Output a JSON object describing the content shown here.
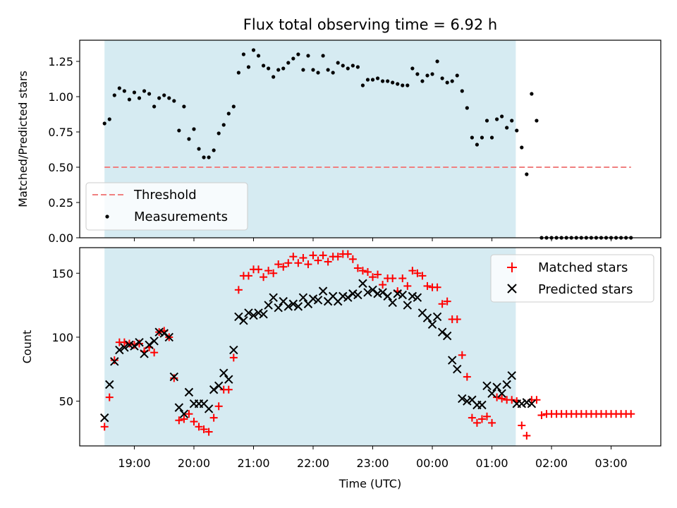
{
  "figure": {
    "title": "Flux total observing time = 6.92 h",
    "xlabel": "Time (UTC)"
  },
  "colors": {
    "shade": "#add8e6",
    "threshold": "#f08080",
    "measurements": "#000000",
    "matched": "#ff0000",
    "predicted": "#000000"
  },
  "chart_data": [
    {
      "type": "scatter",
      "ylabel": "Matched/Predicted stars",
      "ylim": [
        0,
        1.4
      ],
      "yticks": [
        "0.00",
        "0.25",
        "0.50",
        "0.75",
        "1.00",
        "1.25"
      ],
      "xlim": [
        "18:05",
        "03:50"
      ],
      "shaded_span": [
        "18:30",
        "01:24"
      ],
      "threshold": {
        "value": 0.5,
        "x": [
          "18:30",
          "03:20"
        ]
      },
      "legend": {
        "position": "lower-left",
        "entries": [
          "Threshold",
          "Measurements"
        ]
      },
      "series": [
        {
          "name": "Measurements",
          "x": [
            "18:30",
            "18:35",
            "18:40",
            "18:45",
            "18:50",
            "18:55",
            "19:00",
            "19:05",
            "19:10",
            "19:15",
            "19:20",
            "19:25",
            "19:30",
            "19:35",
            "19:40",
            "19:45",
            "19:50",
            "19:55",
            "20:00",
            "20:05",
            "20:10",
            "20:15",
            "20:20",
            "20:25",
            "20:30",
            "20:35",
            "20:40",
            "20:45",
            "20:50",
            "20:55",
            "21:00",
            "21:05",
            "21:10",
            "21:15",
            "21:20",
            "21:25",
            "21:30",
            "21:35",
            "21:40",
            "21:45",
            "21:50",
            "21:55",
            "22:00",
            "22:05",
            "22:10",
            "22:15",
            "22:20",
            "22:25",
            "22:30",
            "22:35",
            "22:40",
            "22:45",
            "22:50",
            "22:55",
            "23:00",
            "23:05",
            "23:10",
            "23:15",
            "23:20",
            "23:25",
            "23:30",
            "23:35",
            "23:40",
            "23:45",
            "23:50",
            "23:55",
            "00:00",
            "00:05",
            "00:10",
            "00:15",
            "00:20",
            "00:25",
            "00:30",
            "00:35",
            "00:40",
            "00:45",
            "00:50",
            "00:55",
            "01:00",
            "01:05",
            "01:10",
            "01:15",
            "01:20",
            "01:25",
            "01:30",
            "01:35",
            "01:40",
            "01:45",
            "01:50",
            "01:55",
            "02:00",
            "02:05",
            "02:10",
            "02:15",
            "02:20",
            "02:25",
            "02:30",
            "02:35",
            "02:40",
            "02:45",
            "02:50",
            "02:55",
            "03:00",
            "03:05",
            "03:10",
            "03:15",
            "03:20"
          ],
          "y": [
            0.81,
            0.84,
            1.01,
            1.06,
            1.04,
            0.98,
            1.03,
            0.99,
            1.04,
            1.02,
            0.93,
            0.99,
            1.01,
            0.99,
            0.97,
            0.76,
            0.93,
            0.7,
            0.77,
            0.63,
            0.57,
            0.57,
            0.62,
            0.74,
            0.8,
            0.88,
            0.93,
            1.17,
            1.3,
            1.21,
            1.33,
            1.29,
            1.22,
            1.2,
            1.14,
            1.19,
            1.2,
            1.24,
            1.27,
            1.3,
            1.19,
            1.29,
            1.19,
            1.17,
            1.29,
            1.19,
            1.17,
            1.24,
            1.22,
            1.2,
            1.22,
            1.21,
            1.08,
            1.12,
            1.12,
            1.13,
            1.11,
            1.11,
            1.1,
            1.09,
            1.08,
            1.08,
            1.2,
            1.16,
            1.11,
            1.15,
            1.16,
            1.25,
            1.13,
            1.1,
            1.11,
            1.15,
            1.04,
            0.92,
            0.71,
            0.66,
            0.71,
            0.83,
            0.71,
            0.84,
            0.86,
            0.78,
            0.83,
            0.76,
            0.64,
            0.45,
            1.02,
            0.83,
            0,
            0,
            0,
            0,
            0,
            0,
            0,
            0,
            0,
            0,
            0,
            0,
            0,
            0,
            0,
            0,
            0,
            0,
            0
          ]
        }
      ]
    },
    {
      "type": "scatter",
      "ylabel": "Count",
      "ylim": [
        15,
        170
      ],
      "yticks": [
        "50",
        "100",
        "150"
      ],
      "xlim": [
        "18:05",
        "03:50"
      ],
      "xticks": [
        "19:00",
        "20:00",
        "21:00",
        "22:00",
        "23:00",
        "00:00",
        "01:00",
        "02:00",
        "03:00"
      ],
      "shaded_span": [
        "18:30",
        "01:24"
      ],
      "legend": {
        "position": "upper-right",
        "entries": [
          "Matched stars",
          "Predicted stars"
        ]
      },
      "series": [
        {
          "name": "Matched stars",
          "marker": "plus",
          "x": [
            "18:30",
            "18:35",
            "18:40",
            "18:45",
            "18:50",
            "18:55",
            "19:00",
            "19:05",
            "19:10",
            "19:15",
            "19:20",
            "19:25",
            "19:30",
            "19:35",
            "19:40",
            "19:45",
            "19:50",
            "19:55",
            "20:00",
            "20:05",
            "20:10",
            "20:15",
            "20:20",
            "20:25",
            "20:30",
            "20:35",
            "20:40",
            "20:45",
            "20:50",
            "20:55",
            "21:00",
            "21:05",
            "21:10",
            "21:15",
            "21:20",
            "21:25",
            "21:30",
            "21:35",
            "21:40",
            "21:45",
            "21:50",
            "21:55",
            "22:00",
            "22:05",
            "22:10",
            "22:15",
            "22:20",
            "22:25",
            "22:30",
            "22:35",
            "22:40",
            "22:45",
            "22:50",
            "22:55",
            "23:00",
            "23:05",
            "23:10",
            "23:15",
            "23:20",
            "23:25",
            "23:30",
            "23:35",
            "23:40",
            "23:45",
            "23:50",
            "23:55",
            "00:00",
            "00:05",
            "00:10",
            "00:15",
            "00:20",
            "00:25",
            "00:30",
            "00:35",
            "00:40",
            "00:45",
            "00:50",
            "00:55",
            "01:00",
            "01:05",
            "01:10",
            "01:15",
            "01:20",
            "01:25",
            "01:30",
            "01:35",
            "01:40",
            "01:45",
            "01:50",
            "01:55",
            "02:00",
            "02:05",
            "02:10",
            "02:15",
            "02:20",
            "02:25",
            "02:30",
            "02:35",
            "02:40",
            "02:45",
            "02:50",
            "02:55",
            "03:00",
            "03:05",
            "03:10",
            "03:15",
            "03:20"
          ],
          "y": [
            30,
            53,
            82,
            96,
            96,
            95,
            94,
            95,
            89,
            92,
            88,
            104,
            105,
            100,
            68,
            35,
            36,
            40,
            34,
            30,
            28,
            26,
            37,
            46,
            59,
            59,
            84,
            137,
            148,
            148,
            153,
            153,
            147,
            152,
            150,
            157,
            155,
            158,
            163,
            158,
            162,
            157,
            164,
            160,
            164,
            159,
            163,
            163,
            165,
            165,
            161,
            154,
            152,
            151,
            147,
            149,
            141,
            146,
            146,
            136,
            146,
            140,
            152,
            150,
            148,
            140,
            139,
            139,
            126,
            128,
            114,
            114,
            86,
            69,
            37,
            33,
            36,
            38,
            33,
            53,
            52,
            51,
            51,
            50,
            31,
            23,
            51,
            51,
            39,
            40,
            40,
            40,
            40,
            40,
            40,
            40,
            40,
            40,
            40,
            40,
            40,
            40,
            40,
            40,
            40,
            40,
            40
          ]
        },
        {
          "name": "Predicted stars",
          "marker": "x",
          "x": [
            "18:30",
            "18:35",
            "18:40",
            "18:45",
            "18:50",
            "18:55",
            "19:00",
            "19:05",
            "19:10",
            "19:15",
            "19:20",
            "19:25",
            "19:30",
            "19:35",
            "19:40",
            "19:45",
            "19:50",
            "19:55",
            "20:00",
            "20:05",
            "20:10",
            "20:15",
            "20:20",
            "20:25",
            "20:30",
            "20:35",
            "20:40",
            "20:45",
            "20:50",
            "20:55",
            "21:00",
            "21:05",
            "21:10",
            "21:15",
            "21:20",
            "21:25",
            "21:30",
            "21:35",
            "21:40",
            "21:45",
            "21:50",
            "21:55",
            "22:00",
            "22:05",
            "22:10",
            "22:15",
            "22:20",
            "22:25",
            "22:30",
            "22:35",
            "22:40",
            "22:45",
            "22:50",
            "22:55",
            "23:00",
            "23:05",
            "23:10",
            "23:15",
            "23:20",
            "23:25",
            "23:30",
            "23:35",
            "23:40",
            "23:45",
            "23:50",
            "23:55",
            "00:00",
            "00:05",
            "00:10",
            "00:15",
            "00:20",
            "00:25",
            "00:30",
            "00:35",
            "00:40",
            "00:45",
            "00:50",
            "00:55",
            "01:00",
            "01:05",
            "01:10",
            "01:15",
            "01:20",
            "01:25",
            "01:30",
            "01:35",
            "01:40"
          ],
          "y": [
            37,
            63,
            81,
            90,
            92,
            94,
            93,
            96,
            87,
            94,
            97,
            104,
            103,
            100,
            69,
            45,
            40,
            57,
            48,
            48,
            48,
            44,
            59,
            62,
            72,
            67,
            90,
            116,
            113,
            119,
            117,
            119,
            118,
            125,
            131,
            123,
            128,
            124,
            126,
            124,
            131,
            126,
            130,
            129,
            136,
            128,
            132,
            128,
            132,
            131,
            134,
            133,
            142,
            135,
            137,
            134,
            135,
            132,
            127,
            134,
            133,
            125,
            132,
            131,
            119,
            115,
            110,
            116,
            104,
            101,
            82,
            75,
            52,
            50,
            51,
            47,
            47,
            62,
            56,
            61,
            56,
            63,
            70,
            48,
            48,
            49,
            48
          ]
        }
      ]
    }
  ]
}
